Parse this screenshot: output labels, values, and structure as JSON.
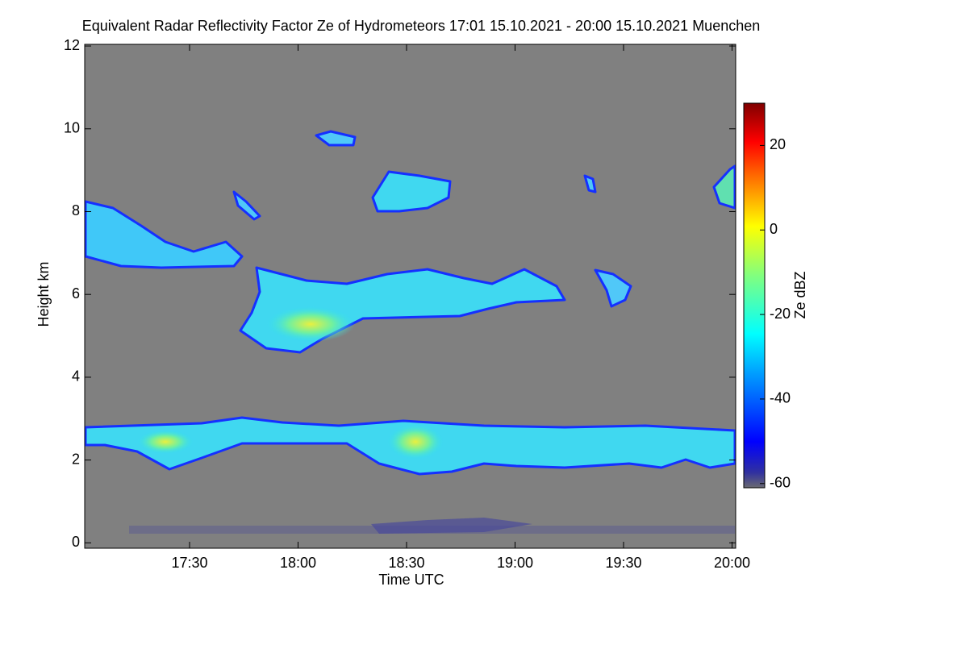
{
  "chart_data": {
    "type": "heatmap",
    "title": "Equivalent Radar Reflectivity Factor Ze of Hydrometeors   17:01 15.10.2021 - 20:00 15.10.2021 Muenchen",
    "x_label": "Time UTC",
    "y_label": "Height km",
    "xlim": [
      17.0167,
      20.0167
    ],
    "xticks": [
      {
        "value": 17.5,
        "label": "17:30"
      },
      {
        "value": 18,
        "label": "18:00"
      },
      {
        "value": 18.5,
        "label": "18:30"
      },
      {
        "value": 19,
        "label": "19:00"
      },
      {
        "value": 19.5,
        "label": "19:30"
      },
      {
        "value": 20,
        "label": "20:00"
      }
    ],
    "ylim": [
      -0.13,
      12.04
    ],
    "yticks": [
      0,
      2,
      4,
      6,
      8,
      10,
      12
    ],
    "colorbar_label": "Ze dBZ",
    "zlim": [
      -61,
      30
    ],
    "zticks": [
      -60,
      -40,
      -20,
      0,
      20
    ],
    "colormap": "jet",
    "background_color": "#808080"
  }
}
